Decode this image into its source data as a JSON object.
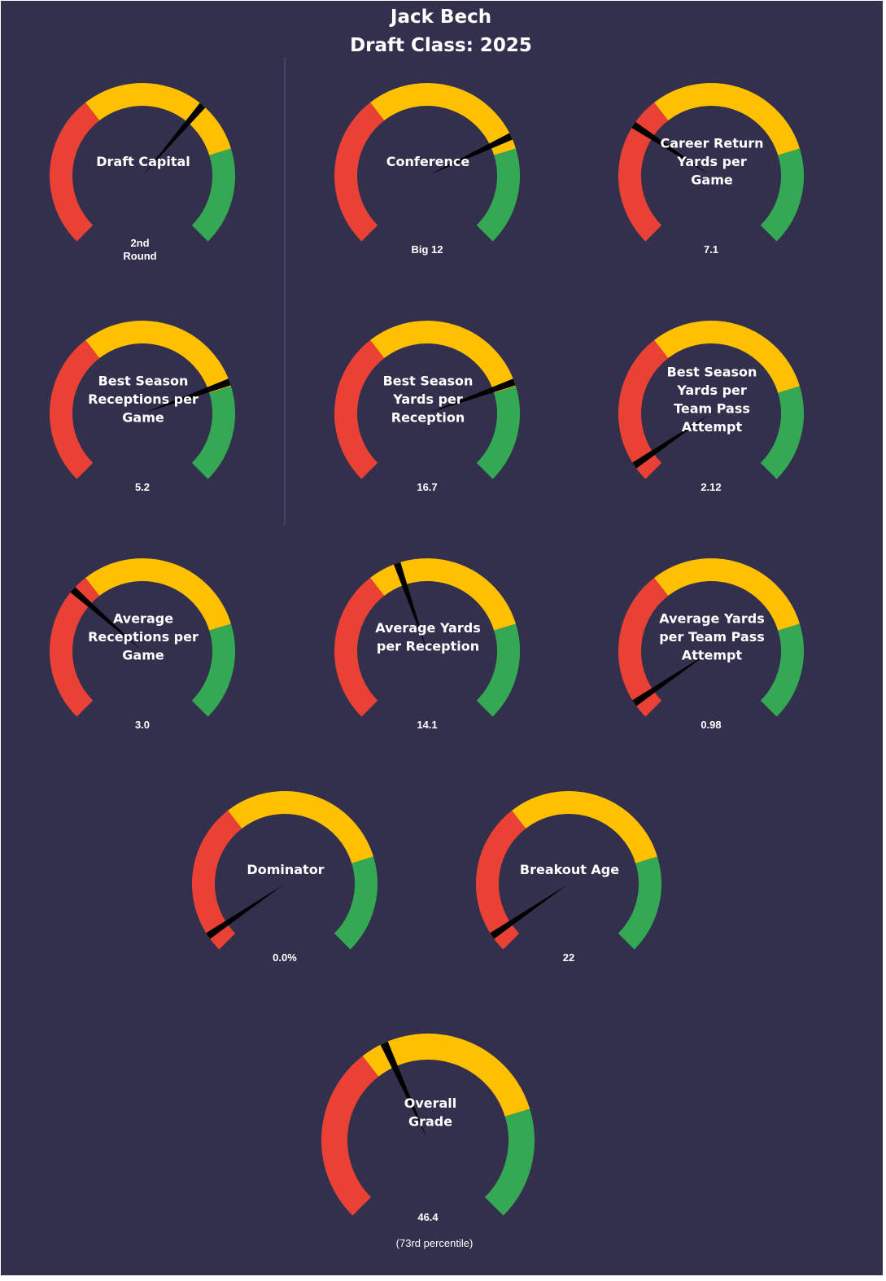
{
  "header": {
    "player_name": "Jack Bech",
    "draft_class": "Draft Class: 2025"
  },
  "colors": {
    "background": "#32304d",
    "low": "#e94235",
    "mid": "#ffc000",
    "high": "#34a853",
    "needle": "#000000",
    "divider": "#5a5878"
  },
  "chart_data": [
    {
      "type": "gauge",
      "label": [
        "Draft Capital"
      ],
      "value_text": [
        "2nd",
        "Round"
      ],
      "arcs": {
        "red": 0.36,
        "yellow": 0.77,
        "green": 1.0
      },
      "needle": 0.65
    },
    {
      "type": "gauge",
      "label": [
        "Conference"
      ],
      "value_text": [
        "Big 12"
      ],
      "arcs": {
        "red": 0.36,
        "yellow": 0.77,
        "green": 1.0
      },
      "needle": 0.74
    },
    {
      "type": "gauge",
      "label": [
        "Career Return",
        "Yards per",
        "Game"
      ],
      "value_text": [
        "7.1"
      ],
      "arcs": {
        "red": 0.36,
        "yellow": 0.77,
        "green": 1.0
      },
      "needle": 0.29
    },
    {
      "type": "gauge",
      "label": [
        "Best Season",
        "Receptions per",
        "Game"
      ],
      "value_text": [
        "5.2"
      ],
      "arcs": {
        "red": 0.36,
        "yellow": 0.77,
        "green": 1.0
      },
      "needle": 0.76
    },
    {
      "type": "gauge",
      "label": [
        "Best Season",
        "Yards per",
        "Reception"
      ],
      "value_text": [
        "16.7"
      ],
      "arcs": {
        "red": 0.36,
        "yellow": 0.77,
        "green": 1.0
      },
      "needle": 0.76
    },
    {
      "type": "gauge",
      "label": [
        "Best Season",
        "Yards per",
        "Team Pass",
        "Attempt"
      ],
      "value_text": [
        "2.12"
      ],
      "arcs": {
        "red": 0.36,
        "yellow": 0.77,
        "green": 1.0
      },
      "needle": 0.04
    },
    {
      "type": "gauge",
      "label": [
        "Average",
        "Receptions per",
        "Game"
      ],
      "value_text": [
        "3.0"
      ],
      "arcs": {
        "red": 0.36,
        "yellow": 0.77,
        "green": 1.0
      },
      "needle": 0.32
    },
    {
      "type": "gauge",
      "label": [
        "Average Yards",
        "per Reception"
      ],
      "value_text": [
        "14.1"
      ],
      "arcs": {
        "red": 0.36,
        "yellow": 0.77,
        "green": 1.0
      },
      "needle": 0.43
    },
    {
      "type": "gauge",
      "label": [
        "Average Yards",
        "per Team Pass",
        "Attempt"
      ],
      "value_text": [
        "0.98"
      ],
      "arcs": {
        "red": 0.36,
        "yellow": 0.77,
        "green": 1.0
      },
      "needle": 0.04
    },
    {
      "type": "gauge",
      "label": [
        "Dominator"
      ],
      "value_text": [
        "0.0%"
      ],
      "arcs": {
        "red": 0.36,
        "yellow": 0.77,
        "green": 1.0
      },
      "needle": 0.04
    },
    {
      "type": "gauge",
      "label": [
        "Breakout Age"
      ],
      "value_text": [
        "22"
      ],
      "arcs": {
        "red": 0.36,
        "yellow": 0.77,
        "green": 1.0
      },
      "needle": 0.04
    },
    {
      "type": "gauge",
      "label": [
        "Overall",
        "Grade"
      ],
      "value_text": [
        "46.4"
      ],
      "sub_text": "(73rd  percentile)",
      "arcs": {
        "red": 0.36,
        "yellow": 0.77,
        "green": 1.0
      },
      "needle": 0.41
    }
  ]
}
